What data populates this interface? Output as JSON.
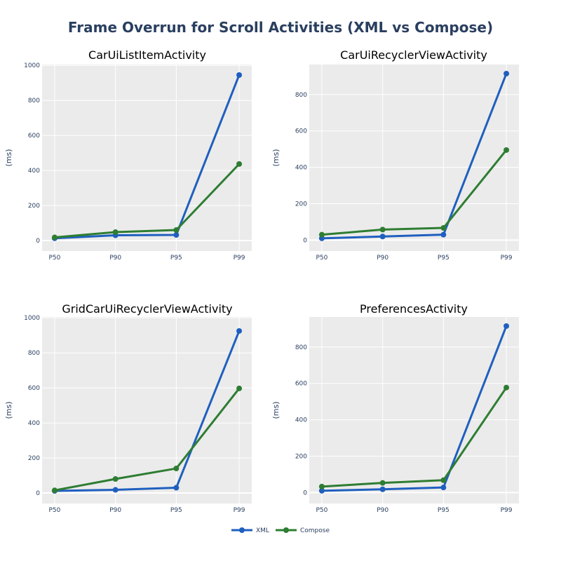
{
  "chart_data": {
    "type": "line",
    "title": "Frame Overrun for Scroll Activities (XML vs Compose)",
    "categories": [
      "P50",
      "P90",
      "P95",
      "P99"
    ],
    "legend": {
      "position": "bottom-center"
    },
    "colors": {
      "XML": "#1f5fbf",
      "Compose": "#2e7d32",
      "plot_bg": "#ebebeb",
      "grid": "#ffffff"
    },
    "subplots": [
      {
        "title": "CarUiListItemActivity",
        "ylabel": "(ms)",
        "ylim": [
          -60,
          1005
        ],
        "yticks": [
          0,
          200,
          400,
          600,
          800,
          1000
        ],
        "series": [
          {
            "name": "XML",
            "values": [
              13,
              30,
              32,
              945
            ]
          },
          {
            "name": "Compose",
            "values": [
              18,
              48,
              60,
              437
            ]
          }
        ]
      },
      {
        "title": "CarUiRecyclerViewActivity",
        "ylabel": "(ms)",
        "ylim": [
          -60,
          965
        ],
        "yticks": [
          0,
          200,
          400,
          600,
          800
        ],
        "series": [
          {
            "name": "XML",
            "values": [
              10,
              20,
              30,
              915
            ]
          },
          {
            "name": "Compose",
            "values": [
              30,
              58,
              67,
              495
            ]
          }
        ]
      },
      {
        "title": "GridCarUiRecyclerViewActivity",
        "ylabel": "(ms)",
        "ylim": [
          -60,
          1005
        ],
        "yticks": [
          0,
          200,
          400,
          600,
          800,
          1000
        ],
        "series": [
          {
            "name": "XML",
            "values": [
              12,
              18,
              30,
              925
            ]
          },
          {
            "name": "Compose",
            "values": [
              15,
              80,
              140,
              597
            ]
          }
        ]
      },
      {
        "title": "PreferencesActivity",
        "ylabel": "(ms)",
        "ylim": [
          -60,
          965
        ],
        "yticks": [
          0,
          200,
          400,
          600,
          800
        ],
        "series": [
          {
            "name": "XML",
            "values": [
              10,
              18,
              28,
              915
            ]
          },
          {
            "name": "Compose",
            "values": [
              33,
              53,
              68,
              577
            ]
          }
        ]
      }
    ]
  }
}
